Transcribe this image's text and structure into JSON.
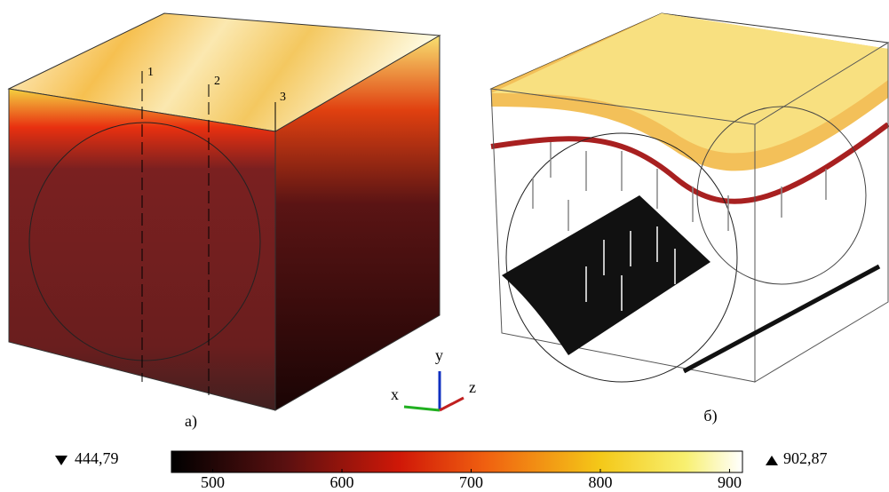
{
  "panels": [
    {
      "label": "а)",
      "line_labels": [
        "1",
        "2",
        "3"
      ]
    },
    {
      "label": "б)"
    }
  ],
  "axes": {
    "x": "x",
    "y": "y",
    "z": "z"
  },
  "colorbar": {
    "min": {
      "value": 444.79,
      "label": "444,79"
    },
    "max": {
      "value": 902.87,
      "label": "902,87"
    },
    "xlim": [
      468,
      910
    ],
    "ticks": [
      500,
      600,
      700,
      800,
      900
    ]
  }
}
